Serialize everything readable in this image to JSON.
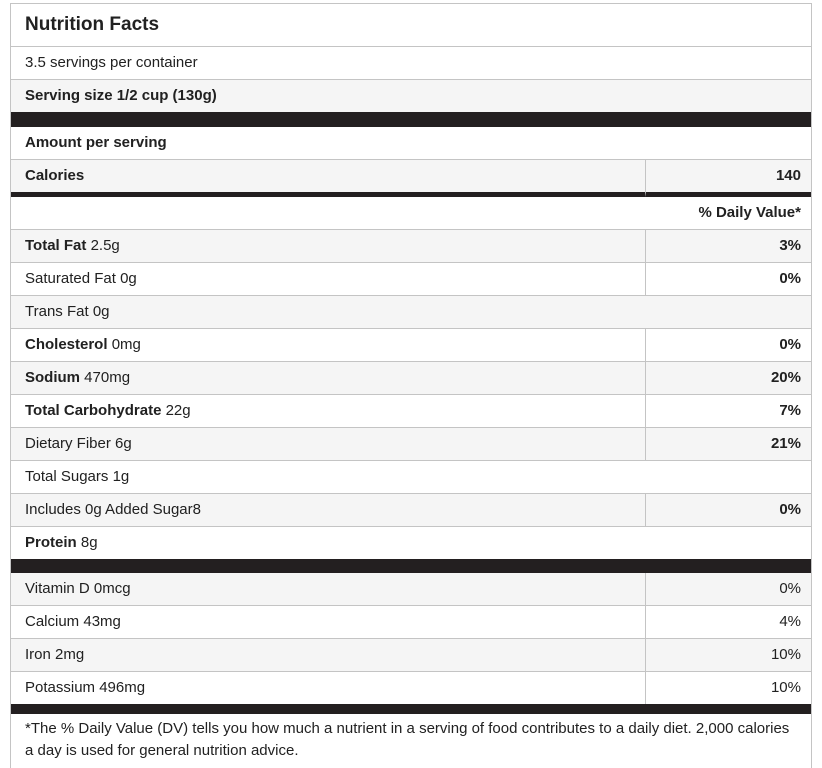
{
  "colors": {
    "text": "#212121",
    "stripe": "#f5f5f5",
    "border": "#c4c4c4",
    "bar": "#231f20"
  },
  "label": {
    "title": "Nutrition Facts",
    "servings_per_container": "3.5 servings per container",
    "serving_size": "Serving size 1/2 cup (130g)",
    "amount_per_serving": "Amount per serving",
    "calories": {
      "label": "Calories",
      "value": "140"
    },
    "daily_value_header": "% Daily Value*",
    "nutrients": [
      {
        "name": "Total Fat",
        "amount": "2.5g",
        "dv": "3%"
      },
      {
        "name": "Saturated Fat",
        "amount": "0g",
        "dv": "0%"
      },
      {
        "name": "Trans Fat",
        "amount": "0g",
        "dv": ""
      },
      {
        "name": "Cholesterol",
        "amount": "0mg",
        "dv": "0%"
      },
      {
        "name": "Sodium",
        "amount": "470mg",
        "dv": "20%"
      },
      {
        "name": "Total Carbohydrate",
        "amount": "22g",
        "dv": "7%"
      },
      {
        "name": "Dietary Fiber",
        "amount": "6g",
        "dv": "21%"
      },
      {
        "name": "Total Sugars",
        "amount": "1g",
        "dv": ""
      },
      {
        "name": "Includes 0g Added Sugar8",
        "amount": "",
        "dv": "0%"
      },
      {
        "name": "Protein",
        "amount": "8g",
        "dv": ""
      }
    ],
    "micronutrients": [
      {
        "name": "Vitamin D",
        "amount": "0mcg",
        "dv": "0%"
      },
      {
        "name": "Calcium",
        "amount": "43mg",
        "dv": "4%"
      },
      {
        "name": "Iron",
        "amount": "2mg",
        "dv": "10%"
      },
      {
        "name": "Potassium",
        "amount": "496mg",
        "dv": "10%"
      }
    ],
    "footnote": "*The % Daily Value (DV) tells you how much a nutrient in a serving of food contributes to a daily diet. 2,000 calories a day is used for general nutrition advice."
  }
}
